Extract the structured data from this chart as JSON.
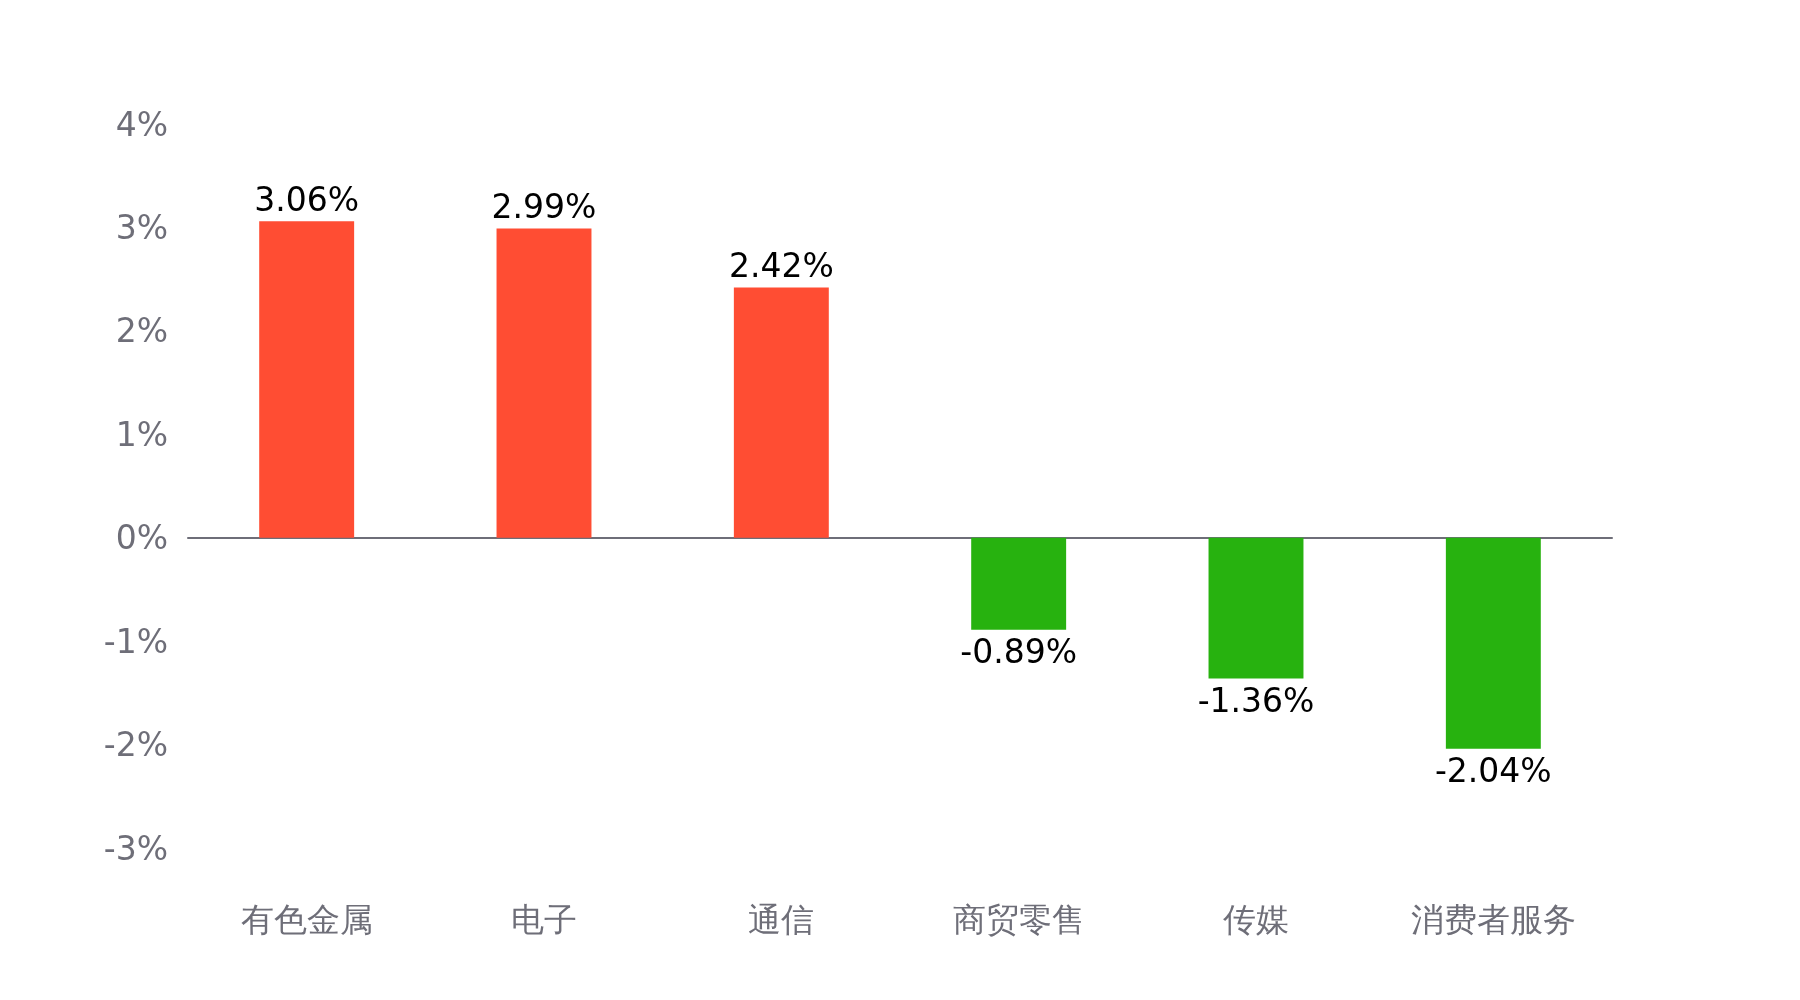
{
  "chart_data": {
    "type": "bar",
    "categories": [
      "有色金属",
      "电子",
      "通信",
      "商贸零售",
      "传媒",
      "消费者服务"
    ],
    "values": [
      3.06,
      2.99,
      2.42,
      -0.89,
      -1.36,
      -2.04
    ],
    "value_labels": [
      "3.06%",
      "2.99%",
      "2.42%",
      "-0.89%",
      "-1.36%",
      "-2.04%"
    ],
    "colors": [
      "#ff4d33",
      "#ff4d33",
      "#ff4d33",
      "#27b20f",
      "#27b20f",
      "#27b20f"
    ],
    "ylim": [
      -3,
      4
    ],
    "yticks": [
      {
        "value": -3,
        "label": "-3%"
      },
      {
        "value": -2,
        "label": "-2%"
      },
      {
        "value": -1,
        "label": "-1%"
      },
      {
        "value": 0,
        "label": "0%"
      },
      {
        "value": 1,
        "label": "1%"
      },
      {
        "value": 2,
        "label": "2%"
      },
      {
        "value": 3,
        "label": "3%"
      },
      {
        "value": 4,
        "label": "4%"
      }
    ],
    "tick_labels": "xy"
  }
}
